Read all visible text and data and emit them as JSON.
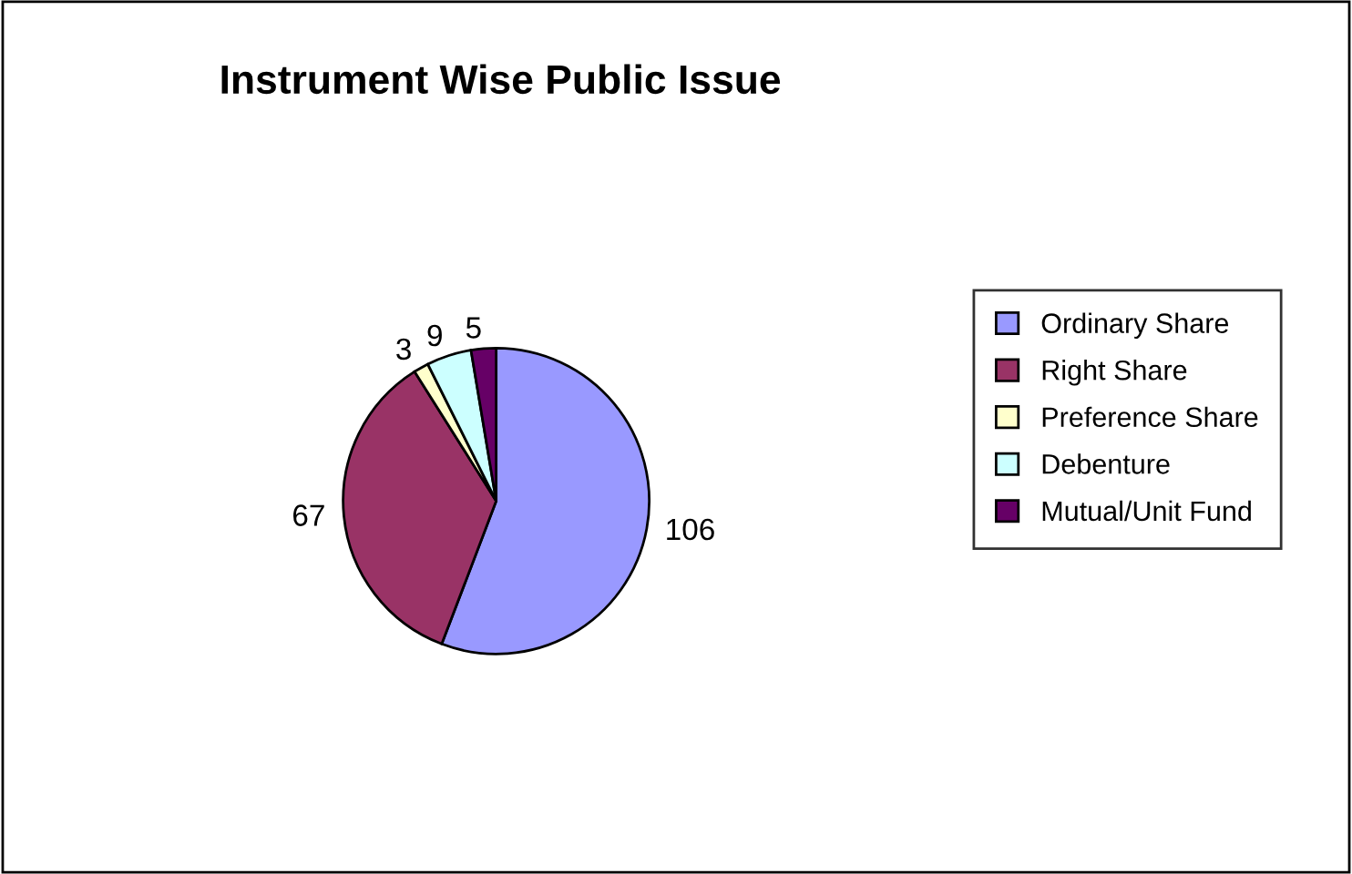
{
  "chart_data": {
    "type": "pie",
    "title": "Instrument Wise Public Issue",
    "categories": [
      "Ordinary Share",
      "Right Share",
      "Preference Share",
      "Debenture",
      "Mutual/Unit Fund"
    ],
    "values": [
      106,
      67,
      3,
      9,
      5
    ],
    "colors": [
      "#9999ff",
      "#993366",
      "#ffffcc",
      "#ccffff",
      "#660066"
    ],
    "data_labels": true,
    "legend": "right"
  }
}
